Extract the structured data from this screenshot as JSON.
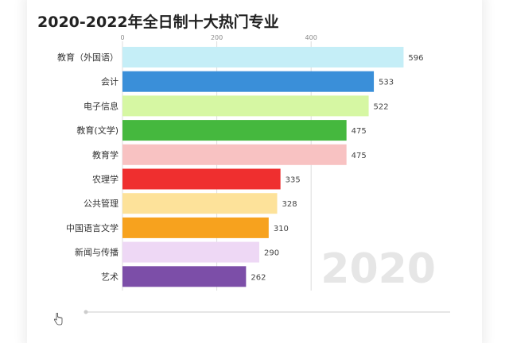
{
  "title": "2020-2022年全日制十大热门专业",
  "year_watermark": "2020",
  "colors": {
    "background": "#ffffff",
    "gridline": "#dddddd",
    "watermark": "#e6e6e6"
  },
  "chart_data": {
    "type": "bar",
    "orientation": "horizontal",
    "title": "2020-2022年全日制十大热门专业",
    "xlim": [
      0,
      620
    ],
    "x_ticks": [
      0,
      200,
      400
    ],
    "grid": true,
    "categories": [
      "教育（外国语）",
      "会计",
      "电子信息",
      "教育(文学)",
      "教育学",
      "农理学",
      "公共管理",
      "中国语言文学",
      "新闻与传播",
      "艺术"
    ],
    "values": [
      596,
      533,
      522,
      475,
      475,
      335,
      328,
      310,
      290,
      262
    ],
    "colors": [
      "#c5eef7",
      "#3a8fd9",
      "#d6f7a3",
      "#45b83e",
      "#f8c2c2",
      "#ef2f2f",
      "#fde29a",
      "#f7a21e",
      "#eed8f5",
      "#7c4ea8"
    ]
  }
}
